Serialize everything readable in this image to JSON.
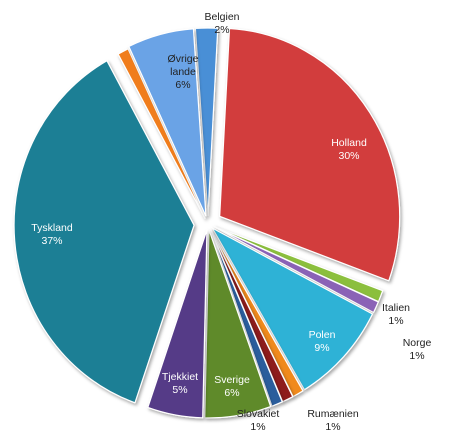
{
  "chart_data": {
    "type": "pie",
    "title": "",
    "slices": [
      {
        "label": "Belgien",
        "value": 2,
        "color": "#4a8fd6"
      },
      {
        "label": "Holland",
        "value": 30,
        "color": "#d23c3c"
      },
      {
        "label": "Italien",
        "value": 1,
        "color": "#8bbf3c"
      },
      {
        "label": "Norge",
        "value": 1,
        "color": "#8a62b6"
      },
      {
        "label": "Polen",
        "value": 9,
        "color": "#2fb2d6"
      },
      {
        "label": "Rumænien",
        "value": 1,
        "color": "#f08a1c"
      },
      {
        "label": "Slovakiet",
        "value": 1,
        "color": "#8e1e1e"
      },
      {
        "label": "",
        "value": 1,
        "color": "#2a5d9c"
      },
      {
        "label": "Sverige",
        "value": 6,
        "color": "#5e8a2a"
      },
      {
        "label": "Tjekkiet",
        "value": 5,
        "color": "#553a87"
      },
      {
        "label": "Tyskland",
        "value": 37,
        "color": "#1f7f95"
      },
      {
        "label": "",
        "value": 1,
        "color": "#f07d1a"
      },
      {
        "label": "Øvrige lande",
        "value": 6,
        "color": "#6aa3e6"
      }
    ],
    "percent_labels": [
      "2%",
      "30%",
      "1%",
      "1%",
      "9%",
      "1%",
      "1%",
      "",
      "6%",
      "5%",
      "37%",
      "",
      "6%"
    ],
    "legend": "none",
    "label_placement": "mixed inside/outside"
  }
}
